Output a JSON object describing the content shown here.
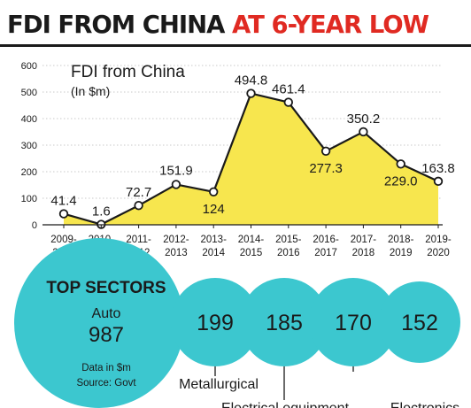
{
  "headline": {
    "part1": "FDI FROM CHINA ",
    "part2": "AT 6-YEAR LOW"
  },
  "colors": {
    "fill": "#f7e64e",
    "line": "#1a1a1a",
    "circle": "#3cc7cf",
    "headline_red": "#e02a22"
  },
  "chart_data": {
    "type": "area",
    "title": "FDI from China",
    "subtitle": "(In $m)",
    "categories": [
      "2009-2010",
      "2010-2011",
      "2011-2012",
      "2012-2013",
      "2013-2014",
      "2014-2015",
      "2015-2016",
      "2016-2017",
      "2017-2018",
      "2018-2019",
      "2019-2020"
    ],
    "category_lines": [
      [
        "2009-",
        "2010"
      ],
      [
        "2010-",
        "2011"
      ],
      [
        "2011-",
        "2012"
      ],
      [
        "2012-",
        "2013"
      ],
      [
        "2013-",
        "2014"
      ],
      [
        "2014-",
        "2015"
      ],
      [
        "2015-",
        "2016"
      ],
      [
        "2016-",
        "2017"
      ],
      [
        "2017-",
        "2018"
      ],
      [
        "2018-",
        "2019"
      ],
      [
        "2019-",
        "2020"
      ]
    ],
    "values": [
      41.4,
      1.6,
      72.7,
      151.9,
      124,
      494.8,
      461.4,
      277.3,
      350.2,
      229.0,
      163.8
    ],
    "value_labels": [
      "41.4",
      "1.6",
      "72.7",
      "151.9",
      "124",
      "494.8",
      "461.4",
      "277.3",
      "350.2",
      "229.0",
      "163.8"
    ],
    "ylim": [
      0,
      600
    ],
    "yticks": [
      0,
      100,
      200,
      300,
      400,
      500,
      600
    ],
    "grid": true
  },
  "sectors": {
    "title": "TOP SECTORS",
    "top": {
      "name": "Auto",
      "value": "987"
    },
    "note_line1": "Data in $m",
    "note_line2": "Source: Govt",
    "others": [
      {
        "value": "199",
        "name": "Metallurgical"
      },
      {
        "value": "185",
        "name": "Electrical equipment"
      },
      {
        "value": "170",
        "name": ""
      },
      {
        "value": "152",
        "name": "Electronics"
      }
    ]
  }
}
